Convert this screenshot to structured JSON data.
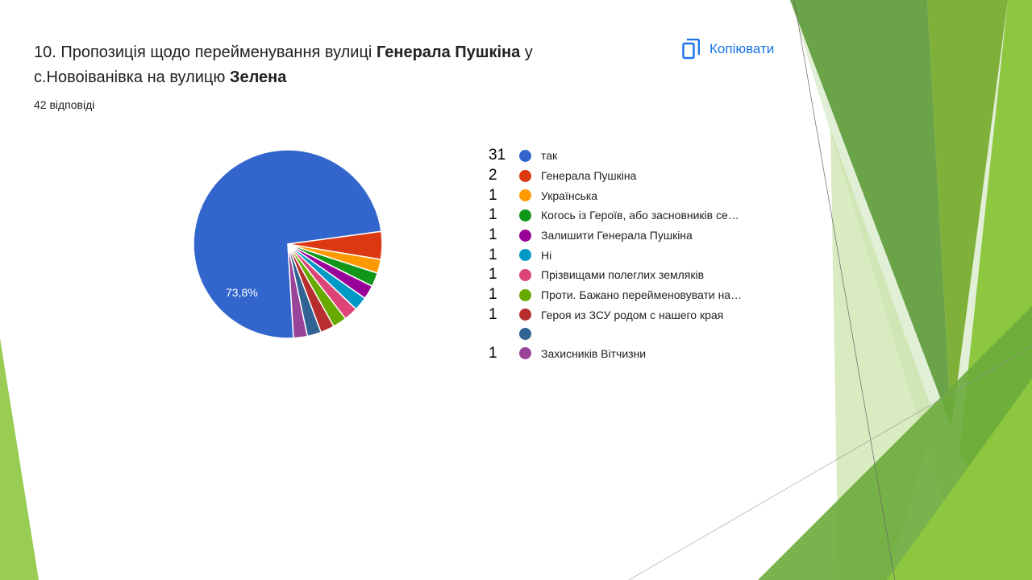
{
  "question": {
    "prefix": "10. Пропозиція щодо перейменування вулиці ",
    "bold1": "Генерала Пушкіна",
    "middle": "  у с.Новоіванівка на вулицю ",
    "bold2": "Зелена"
  },
  "responses_count": "42 відповіді",
  "copy_button": {
    "label": "Копіювати",
    "icon": "copy-icon"
  },
  "chart_data": {
    "type": "pie",
    "title": "10. Пропозиція щодо перейменування вулиці Генерала Пушкіна у с.Новоіванівка на вулицю Зелена",
    "total": 42,
    "slice_label": "73,8%",
    "categories": [
      "так",
      "Генерала Пушкіна",
      "Українська",
      "Когось із Героїв, або засновників се…",
      "Залишити Генерала Пушкіна",
      "Ні",
      "Прізвищами полеглих земляків",
      "Проти. Бажано перейменовувати на…",
      "Героя из ЗСУ родом с нашего края",
      "",
      "Захисників Вітчизни"
    ],
    "values": [
      31,
      2,
      1,
      1,
      1,
      1,
      1,
      1,
      1,
      1,
      1
    ],
    "count_labels": [
      "31",
      "2",
      "1",
      "1",
      "1",
      "1",
      "1",
      "1",
      "1",
      "",
      "1"
    ],
    "colors": [
      "#3366cc",
      "#dc3912",
      "#ff9900",
      "#109618",
      "#990099",
      "#0099c6",
      "#dd4477",
      "#66aa00",
      "#b82e2e",
      "#316395",
      "#994499"
    ],
    "legend_position": "right"
  }
}
